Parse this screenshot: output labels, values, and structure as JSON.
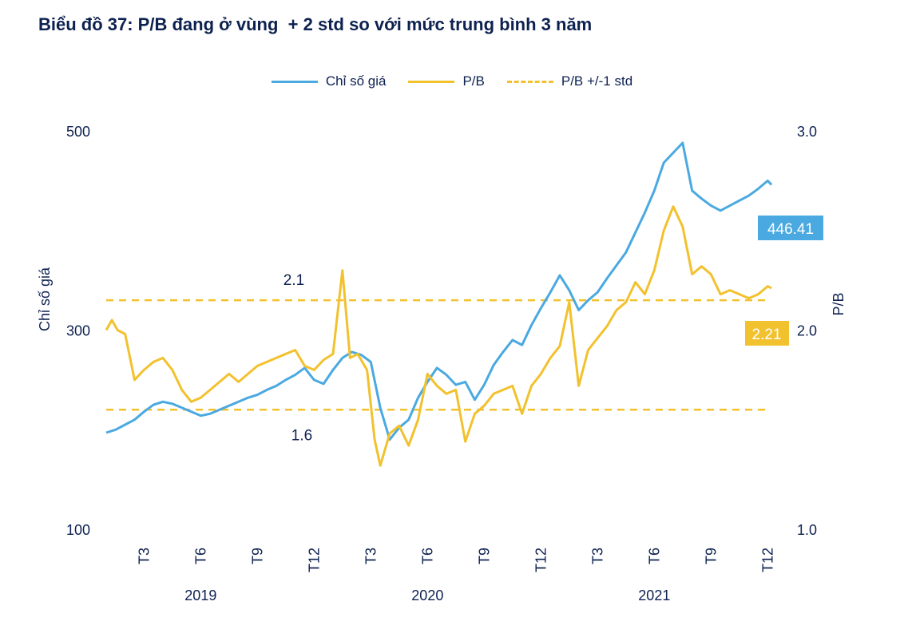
{
  "chart_data": {
    "type": "line",
    "title": "Biểu đồ 37: P/B đang ở vùng  + 2 std so với mức trung bình 3 năm",
    "ylabel_left": "Chỉ số giá",
    "ylabel_right": "P/B",
    "ylim_left": [
      100,
      500
    ],
    "ylim_right": [
      1.0,
      3.0
    ],
    "yticks_left": [
      "100",
      "300",
      "500"
    ],
    "yticks_right": [
      "1.0",
      "2.0",
      "3.0"
    ],
    "xticks": [
      "T3",
      "T6",
      "T9",
      "T12",
      "T3",
      "T6",
      "T9",
      "T12",
      "T3",
      "T6",
      "T9",
      "T12"
    ],
    "xtick_months": [
      2,
      5,
      8,
      11,
      14,
      17,
      20,
      23,
      26,
      29,
      32,
      35
    ],
    "years": [
      {
        "label": "2019",
        "month": 5
      },
      {
        "label": "2020",
        "month": 17
      },
      {
        "label": "2021",
        "month": 29
      }
    ],
    "xlim": [
      0,
      36
    ],
    "legend": [
      "Chỉ số giá",
      "P/B",
      "P/B +/-1 std"
    ],
    "colors": {
      "index": "#4aa9e0",
      "pb": "#f2c12e",
      "band": "#f2c12e"
    },
    "band_values": [
      2.15,
      1.6
    ],
    "band_labels": [
      "2.1",
      "1.6"
    ],
    "last_labels": {
      "index": "446.41",
      "pb": "2.21"
    },
    "series": [
      {
        "name": "Chỉ số giá",
        "axis": "left",
        "months": [
          0,
          0.5,
          1,
          1.5,
          2,
          2.5,
          3,
          3.5,
          4,
          4.5,
          5,
          5.5,
          6,
          6.5,
          7,
          7.5,
          8,
          8.5,
          9,
          9.5,
          10,
          10.5,
          11,
          11.5,
          12,
          12.5,
          13,
          13.5,
          14,
          14.5,
          15,
          15.5,
          16,
          16.5,
          17,
          17.5,
          18,
          18.5,
          19,
          19.5,
          20,
          20.5,
          21,
          21.5,
          22,
          22.5,
          23,
          23.5,
          24,
          24.5,
          25,
          25.5,
          26,
          26.5,
          27,
          27.5,
          28,
          28.5,
          29,
          29.5,
          30,
          30.5,
          31,
          31.5,
          32,
          32.5,
          33,
          33.5,
          34,
          34.5,
          35,
          35.2
        ],
        "values": [
          197,
          200,
          205,
          210,
          218,
          225,
          228,
          226,
          222,
          218,
          214,
          216,
          220,
          224,
          228,
          232,
          235,
          240,
          244,
          250,
          255,
          262,
          250,
          246,
          260,
          272,
          278,
          275,
          268,
          222,
          190,
          202,
          210,
          232,
          248,
          262,
          255,
          245,
          248,
          230,
          245,
          265,
          278,
          290,
          285,
          305,
          322,
          338,
          355,
          340,
          320,
          330,
          338,
          352,
          365,
          378,
          398,
          418,
          440,
          468,
          478,
          488,
          440,
          432,
          425,
          420,
          425,
          430,
          435,
          442,
          450,
          446
        ]
      },
      {
        "name": "P/B",
        "axis": "right",
        "months": [
          0,
          0.3,
          0.6,
          1,
          1.5,
          2,
          2.5,
          3,
          3.5,
          4,
          4.5,
          5,
          5.5,
          6,
          6.5,
          7,
          7.5,
          8,
          8.5,
          9,
          9.5,
          10,
          10.5,
          11,
          11.5,
          12,
          12.5,
          12.9,
          13.3,
          13.8,
          14.2,
          14.5,
          15,
          15.5,
          16,
          16.5,
          17,
          17.5,
          18,
          18.5,
          19,
          19.5,
          20,
          20.5,
          21,
          21.5,
          22,
          22.5,
          23,
          23.5,
          24,
          24.5,
          25,
          25.5,
          26,
          26.5,
          27,
          27.5,
          28,
          28.5,
          29,
          29.5,
          30,
          30.5,
          31,
          31.5,
          32,
          32.5,
          33,
          33.5,
          34,
          34.5,
          35,
          35.2
        ],
        "values": [
          2.0,
          2.05,
          2.0,
          1.98,
          1.75,
          1.8,
          1.84,
          1.86,
          1.8,
          1.7,
          1.64,
          1.66,
          1.7,
          1.74,
          1.78,
          1.74,
          1.78,
          1.82,
          1.84,
          1.86,
          1.88,
          1.9,
          1.82,
          1.8,
          1.85,
          1.88,
          2.3,
          1.86,
          1.88,
          1.8,
          1.45,
          1.32,
          1.48,
          1.52,
          1.42,
          1.55,
          1.78,
          1.72,
          1.68,
          1.7,
          1.44,
          1.58,
          1.62,
          1.68,
          1.7,
          1.72,
          1.58,
          1.72,
          1.78,
          1.86,
          1.92,
          2.14,
          1.72,
          1.9,
          1.96,
          2.02,
          2.1,
          2.14,
          2.24,
          2.18,
          2.3,
          2.5,
          2.62,
          2.52,
          2.28,
          2.32,
          2.28,
          2.18,
          2.2,
          2.18,
          2.16,
          2.18,
          2.22,
          2.21
        ]
      }
    ]
  }
}
